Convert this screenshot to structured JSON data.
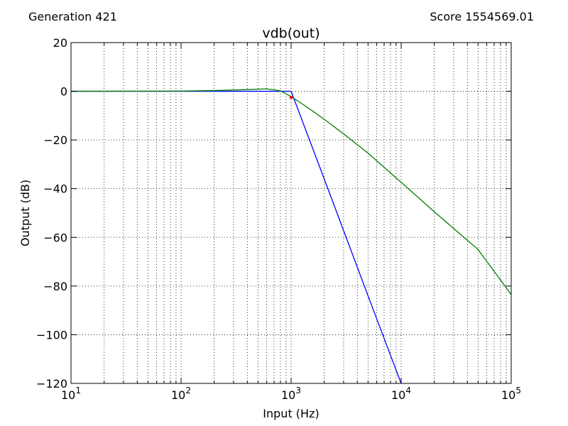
{
  "header": {
    "generation_label": "Generation 421",
    "score_label": "Score 1554569.01"
  },
  "chart_data": {
    "type": "line",
    "title": "vdb(out)",
    "xlabel": "Input (Hz)",
    "ylabel": "Output (dB)",
    "xscale": "log",
    "xlim": [
      10,
      100000
    ],
    "ylim": [
      -120,
      20
    ],
    "xticks": [
      {
        "value": 10,
        "base": "10",
        "exp": "1"
      },
      {
        "value": 100,
        "base": "10",
        "exp": "2"
      },
      {
        "value": 1000,
        "base": "10",
        "exp": "3"
      },
      {
        "value": 10000,
        "base": "10",
        "exp": "4"
      },
      {
        "value": 100000,
        "base": "10",
        "exp": "5"
      }
    ],
    "yticks": [
      {
        "value": 20,
        "label": "20"
      },
      {
        "value": 0,
        "label": "0"
      },
      {
        "value": -20,
        "label": "−20"
      },
      {
        "value": -40,
        "label": "−40"
      },
      {
        "value": -60,
        "label": "−60"
      },
      {
        "value": -80,
        "label": "−80"
      },
      {
        "value": -100,
        "label": "−100"
      },
      {
        "value": -120,
        "label": "−120"
      }
    ],
    "grid": true,
    "series": [
      {
        "color": "#0000ff",
        "x": [
          10,
          100,
          500,
          1000,
          2000,
          5000,
          10000,
          15850
        ],
        "y": [
          0,
          0,
          0,
          0,
          -36,
          -84,
          -120,
          -144
        ]
      },
      {
        "color": "#008000",
        "x": [
          10,
          100,
          200,
          400,
          600,
          800,
          1000,
          1200,
          1500,
          2000,
          3000,
          5000,
          10000,
          20000,
          50000,
          100000
        ],
        "y": [
          0,
          0.1,
          0.3,
          0.7,
          1.0,
          0.2,
          -2.2,
          -4.5,
          -7.5,
          -11.5,
          -17.5,
          -25.4,
          -37.4,
          -49.5,
          -65.0,
          -83.5
        ]
      }
    ],
    "markers": [
      {
        "x": 1000,
        "y": -2.5,
        "color": "#ff0000"
      }
    ]
  }
}
